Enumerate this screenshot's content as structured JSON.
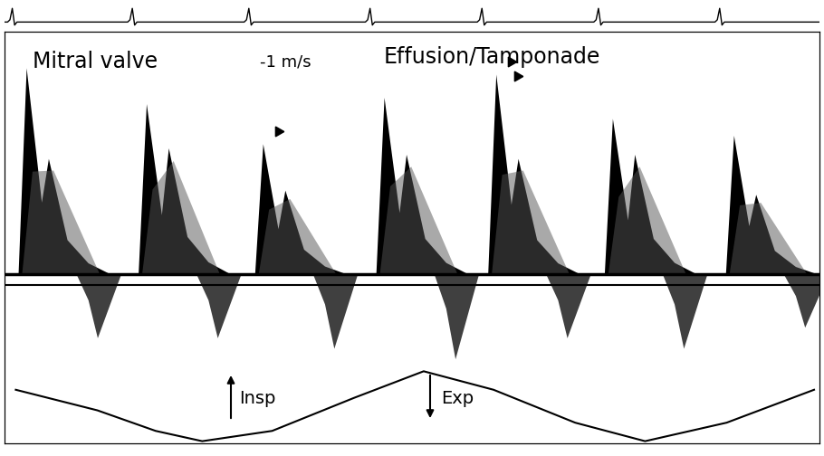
{
  "chart_data": {
    "type": "doppler",
    "annotations": [
      "Mitral valve",
      "-1 m/s",
      "Effusion/Tamponade",
      "Insp",
      "Exp"
    ],
    "x": [
      0.12,
      1.15,
      2.15,
      3.19,
      4.15,
      5.15,
      6.19
    ],
    "series": [
      {
        "type": "e_wave",
        "color": "#000000",
        "values": [
          0.98,
          0.81,
          0.62,
          0.84,
          0.95,
          0.74,
          0.66
        ]
      },
      {
        "type": "a_wave",
        "color": "#000000",
        "values": [
          0.55,
          0.6,
          0.4,
          0.57,
          0.55,
          0.57,
          0.38
        ]
      },
      {
        "type": "s_wave",
        "color": "#000000",
        "values": [
          -0.3,
          -0.3,
          -0.35,
          -0.4,
          -0.3,
          -0.35,
          -0.25
        ]
      },
      {
        "type": "line",
        "axis": "y2",
        "color": "#000000",
        "x": [
          0.1,
          0.8,
          1.3,
          1.7,
          2.3,
          3.0,
          3.6,
          4.2,
          4.9,
          5.5,
          6.2,
          6.95
        ],
        "values": [
          1.3,
          0.8,
          0.3,
          0.05,
          0.3,
          1.1,
          1.75,
          1.3,
          0.5,
          0.05,
          0.5,
          1.3
        ]
      }
    ],
    "xlim": [
      0,
      7
    ],
    "ylim": [
      -0.8,
      1.15
    ],
    "xticks": [],
    "yticks": [],
    "y2lim": [
      0,
      10
    ],
    "y2ticks": [],
    "tick_labels": false
  }
}
